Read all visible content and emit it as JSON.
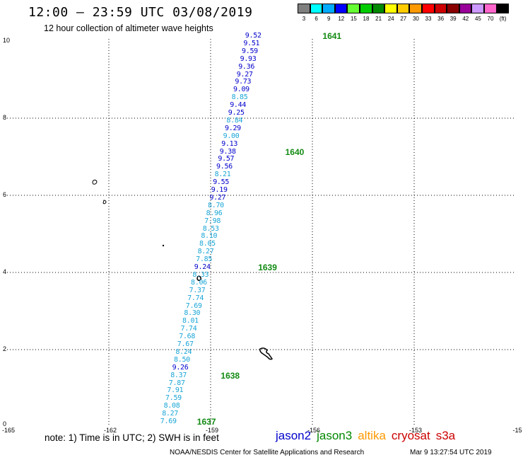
{
  "header": {
    "title": "12:00 – 23:59 UTC 03/08/2019",
    "subtitle": "12 hour collection of altimeter wave heights"
  },
  "color_scale": {
    "labels": [
      "3",
      "6",
      "9",
      "12",
      "15",
      "18",
      "21",
      "24",
      "27",
      "30",
      "33",
      "36",
      "39",
      "42",
      "45",
      "70",
      "(ft)"
    ],
    "colors": [
      "#7f7f7f",
      "#00ffff",
      "#00aaff",
      "#0000ff",
      "#66ff33",
      "#00cc00",
      "#008800",
      "#ffff00",
      "#ffcc00",
      "#ff9900",
      "#ff0000",
      "#cc0000",
      "#880000",
      "#990099",
      "#cc99ff",
      "#ff66cc",
      "#000000"
    ]
  },
  "axes": {
    "x_ticks": [
      "-165",
      "-162",
      "-159",
      "-156",
      "-153",
      "-15"
    ],
    "y_ticks": [
      "10",
      "8",
      "6",
      "4",
      "2",
      "0"
    ]
  },
  "chart_data": {
    "type": "scatter",
    "xlim": [
      -165,
      -150
    ],
    "ylim": [
      0,
      11
    ],
    "grid": true,
    "points": [
      {
        "x": -160.4,
        "y": 0.0,
        "label": "7.69",
        "color": "#19a5d6"
      },
      {
        "x": -160.35,
        "y": 0.2,
        "label": "8.27",
        "color": "#19a5d6"
      },
      {
        "x": -160.3,
        "y": 0.4,
        "label": "8.08",
        "color": "#19a5d6"
      },
      {
        "x": -160.25,
        "y": 0.6,
        "label": "7.59",
        "color": "#19a5d6"
      },
      {
        "x": -160.2,
        "y": 0.8,
        "label": "7.91",
        "color": "#19a5d6"
      },
      {
        "x": -160.15,
        "y": 1.0,
        "label": "7.87",
        "color": "#19a5d6"
      },
      {
        "x": -160.1,
        "y": 1.2,
        "label": "8.37",
        "color": "#19a5d6"
      },
      {
        "x": -160.05,
        "y": 1.4,
        "label": "9.26",
        "color": "#0000cc"
      },
      {
        "x": -160.0,
        "y": 1.6,
        "label": "8.50",
        "color": "#19a5d6"
      },
      {
        "x": -159.95,
        "y": 1.8,
        "label": "8.24",
        "color": "#19a5d6"
      },
      {
        "x": -159.9,
        "y": 2.0,
        "label": "7.67",
        "color": "#19a5d6"
      },
      {
        "x": -159.85,
        "y": 2.2,
        "label": "7.68",
        "color": "#19a5d6"
      },
      {
        "x": -159.8,
        "y": 2.4,
        "label": "7.74",
        "color": "#19a5d6"
      },
      {
        "x": -159.75,
        "y": 2.6,
        "label": "8.01",
        "color": "#19a5d6"
      },
      {
        "x": -159.7,
        "y": 2.8,
        "label": "8.30",
        "color": "#19a5d6"
      },
      {
        "x": -159.65,
        "y": 3.0,
        "label": "7.69",
        "color": "#19a5d6"
      },
      {
        "x": -159.6,
        "y": 3.2,
        "label": "7.74",
        "color": "#19a5d6"
      },
      {
        "x": -159.55,
        "y": 3.4,
        "label": "7.37",
        "color": "#19a5d6"
      },
      {
        "x": -159.5,
        "y": 3.6,
        "label": "8.06",
        "color": "#19a5d6"
      },
      {
        "x": -159.45,
        "y": 3.8,
        "label": "8.33",
        "color": "#19a5d6"
      },
      {
        "x": -159.4,
        "y": 4.0,
        "label": "9.24",
        "color": "#0000cc"
      },
      {
        "x": -159.35,
        "y": 4.2,
        "label": "7.85",
        "color": "#19a5d6"
      },
      {
        "x": -159.3,
        "y": 4.4,
        "label": "8.27",
        "color": "#19a5d6"
      },
      {
        "x": -159.25,
        "y": 4.6,
        "label": "8.05",
        "color": "#19a5d6"
      },
      {
        "x": -159.2,
        "y": 4.8,
        "label": "8.10",
        "color": "#19a5d6"
      },
      {
        "x": -159.15,
        "y": 5.0,
        "label": "8.53",
        "color": "#19a5d6"
      },
      {
        "x": -159.1,
        "y": 5.2,
        "label": "7.98",
        "color": "#19a5d6"
      },
      {
        "x": -159.05,
        "y": 5.4,
        "label": "8.96",
        "color": "#19a5d6"
      },
      {
        "x": -159.0,
        "y": 5.6,
        "label": "8.70",
        "color": "#19a5d6"
      },
      {
        "x": -158.95,
        "y": 5.8,
        "label": "9.27",
        "color": "#0000cc"
      },
      {
        "x": -158.9,
        "y": 6.0,
        "label": "9.19",
        "color": "#0000cc"
      },
      {
        "x": -158.85,
        "y": 6.2,
        "label": "9.55",
        "color": "#0000cc"
      },
      {
        "x": -158.8,
        "y": 6.4,
        "label": "8.21",
        "color": "#19a5d6"
      },
      {
        "x": -158.75,
        "y": 6.6,
        "label": "9.56",
        "color": "#0000cc"
      },
      {
        "x": -158.7,
        "y": 6.8,
        "label": "9.57",
        "color": "#0000cc"
      },
      {
        "x": -158.65,
        "y": 7.0,
        "label": "9.38",
        "color": "#0000cc"
      },
      {
        "x": -158.6,
        "y": 7.2,
        "label": "9.13",
        "color": "#0000cc"
      },
      {
        "x": -158.55,
        "y": 7.4,
        "label": "9.00",
        "color": "#19a5d6"
      },
      {
        "x": -158.5,
        "y": 7.6,
        "label": "9.29",
        "color": "#0000cc"
      },
      {
        "x": -158.45,
        "y": 7.8,
        "label": "8.84",
        "color": "#19a5d6"
      },
      {
        "x": -158.4,
        "y": 8.0,
        "label": "9.25",
        "color": "#0000cc"
      },
      {
        "x": -158.35,
        "y": 8.2,
        "label": "9.44",
        "color": "#0000cc"
      },
      {
        "x": -158.3,
        "y": 8.4,
        "label": "8.85",
        "color": "#19a5d6"
      },
      {
        "x": -158.25,
        "y": 8.6,
        "label": "9.09",
        "color": "#0000cc"
      },
      {
        "x": -158.2,
        "y": 8.8,
        "label": "9.73",
        "color": "#0000cc"
      },
      {
        "x": -158.15,
        "y": 9.0,
        "label": "9.27",
        "color": "#0000cc"
      },
      {
        "x": -158.1,
        "y": 9.2,
        "label": "9.36",
        "color": "#0000cc"
      },
      {
        "x": -158.05,
        "y": 9.4,
        "label": "9.93",
        "color": "#0000cc"
      },
      {
        "x": -158.0,
        "y": 9.6,
        "label": "9.59",
        "color": "#0000cc"
      },
      {
        "x": -157.95,
        "y": 9.8,
        "label": "9.51",
        "color": "#0000cc"
      },
      {
        "x": -157.9,
        "y": 10.0,
        "label": "9.52",
        "color": "#0000cc"
      }
    ],
    "orbit_labels": [
      {
        "x": -159.4,
        "y": 0.0,
        "label": "1637"
      },
      {
        "x": -158.7,
        "y": 1.2,
        "label": "1638"
      },
      {
        "x": -157.6,
        "y": 4.0,
        "label": "1639"
      },
      {
        "x": -156.8,
        "y": 7.0,
        "label": "1640"
      },
      {
        "x": -155.7,
        "y": 10.0,
        "label": "1641"
      }
    ]
  },
  "footer": {
    "note": "note:  1) Time is in UTC;  2) SWH is in feet",
    "satellites": [
      {
        "name": "jason2",
        "color": "#0000cc"
      },
      {
        "name": "jason3",
        "color": "#008800"
      },
      {
        "name": "altika",
        "color": "#ff9900"
      },
      {
        "name": "cryosat",
        "color": "#cc0000"
      },
      {
        "name": "s3a",
        "color": "#cc0000"
      }
    ],
    "credit": "NOAA/NESDIS Center for Satellite Applications and Research",
    "timestamp": "Mar  9 13:27:54 UTC 2019"
  }
}
